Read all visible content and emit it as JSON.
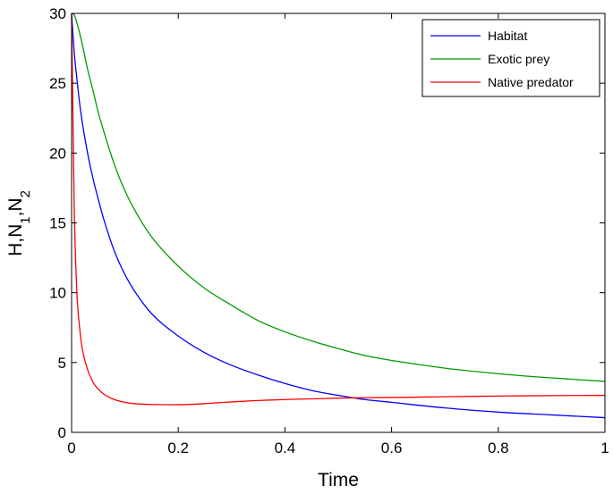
{
  "chart_data": {
    "type": "line",
    "title": "",
    "xlabel": "Time",
    "ylabel": "H,N",
    "ylabel_parts": [
      {
        "text": "H,N",
        "sub": false
      },
      {
        "text": "1",
        "sub": true
      },
      {
        "text": ",N",
        "sub": false
      },
      {
        "text": "2",
        "sub": true
      }
    ],
    "xlim": [
      0,
      1
    ],
    "ylim": [
      0,
      30
    ],
    "xticks": [
      0,
      0.2,
      0.4,
      0.6,
      0.8,
      1
    ],
    "xtick_labels": [
      "0",
      "0.2",
      "0.4",
      "0.6",
      "0.8",
      "1"
    ],
    "yticks": [
      0,
      5,
      10,
      15,
      20,
      25,
      30
    ],
    "ytick_labels": [
      "0",
      "5",
      "10",
      "15",
      "20",
      "25",
      "30"
    ],
    "grid": false,
    "legend_position": "top-right",
    "x": [
      0,
      0.005,
      0.01,
      0.015,
      0.02,
      0.03,
      0.04,
      0.05,
      0.06,
      0.08,
      0.1,
      0.12,
      0.15,
      0.2,
      0.25,
      0.3,
      0.35,
      0.4,
      0.45,
      0.5,
      0.55,
      0.6,
      0.7,
      0.8,
      0.9,
      1.0
    ],
    "series": [
      {
        "name": "Habitat",
        "color": "#0000ff",
        "values": [
          30,
          27.2,
          25.3,
          23.6,
          22.2,
          20.0,
          18.2,
          16.7,
          15.3,
          13.0,
          11.3,
          10.0,
          8.5,
          6.9,
          5.7,
          4.8,
          4.1,
          3.5,
          3.0,
          2.65,
          2.35,
          2.15,
          1.75,
          1.45,
          1.25,
          1.05
        ]
      },
      {
        "name": "Exotic prey",
        "color": "#009900",
        "values": [
          30,
          29.9,
          29.3,
          28.6,
          27.8,
          26.0,
          24.5,
          22.9,
          21.6,
          19.2,
          17.3,
          15.8,
          14.0,
          11.9,
          10.3,
          9.1,
          8.0,
          7.2,
          6.55,
          6.0,
          5.5,
          5.15,
          4.6,
          4.2,
          3.9,
          3.65
        ]
      },
      {
        "name": "Native predator",
        "color": "#ff0000",
        "values": [
          30,
          16.0,
          10.0,
          7.5,
          6.0,
          4.5,
          3.6,
          3.1,
          2.75,
          2.35,
          2.15,
          2.05,
          2.0,
          1.98,
          2.06,
          2.18,
          2.28,
          2.35,
          2.4,
          2.45,
          2.48,
          2.5,
          2.55,
          2.6,
          2.63,
          2.65
        ]
      }
    ]
  }
}
